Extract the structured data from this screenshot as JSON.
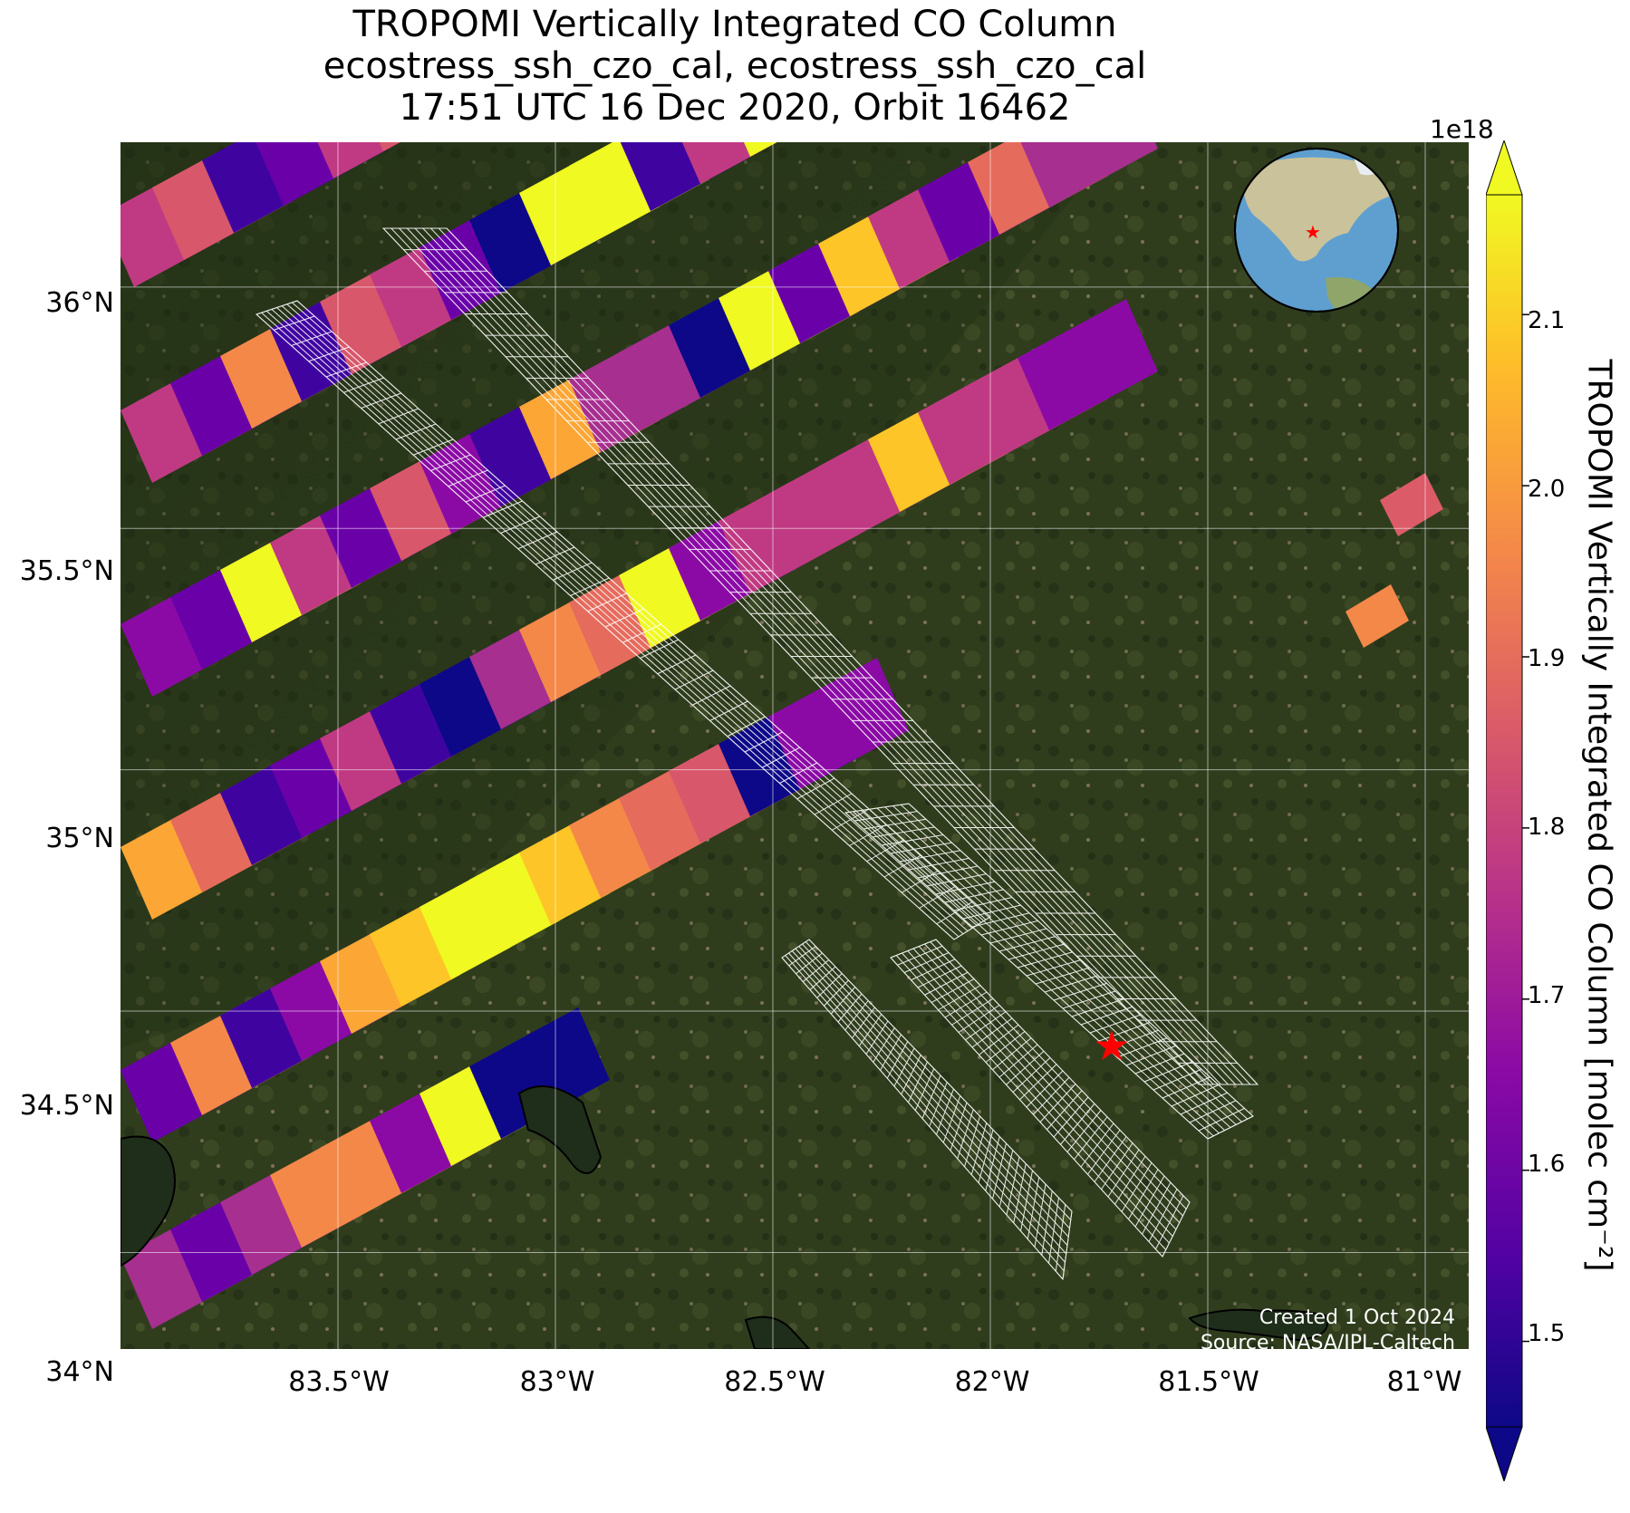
{
  "title": {
    "line1": "TROPOMI Vertically Integrated CO Column",
    "line2": "ecostress_ssh_czo_cal, ecostress_ssh_czo_cal",
    "line3": "17:51 UTC 16 Dec 2020, Orbit 16462"
  },
  "map": {
    "lon_range": [
      -84.0,
      -80.9
    ],
    "lat_range": [
      33.8,
      36.3
    ],
    "x_ticks": [
      "83.5°W",
      "83°W",
      "82.5°W",
      "82°W",
      "81.5°W",
      "81°W"
    ],
    "y_ticks": [
      "36°N",
      "35.5°N",
      "35°N",
      "34.5°N",
      "34°N"
    ],
    "grid": true,
    "target_marker": {
      "lon": -81.72,
      "lat": 34.61,
      "color": "#ff0000",
      "symbol": "star"
    },
    "globe_inset": {
      "position": "top-right",
      "ocean_color": "#5f9fd0",
      "land_color": "#c9c29a"
    }
  },
  "colorbar": {
    "label": "TROPOMI Vertically Integrated CO Column [molec cm⁻²]",
    "exponent": "1e18",
    "colormap": "plasma",
    "vmin": 1.45,
    "vmax": 2.17,
    "ticks": [
      "2.1",
      "2.0",
      "1.9",
      "1.8",
      "1.7",
      "1.6",
      "1.5"
    ],
    "extend": "both"
  },
  "credits": {
    "created": "Created 1 Oct 2024",
    "source": "Source: NASA/JPL-Caltech"
  }
}
